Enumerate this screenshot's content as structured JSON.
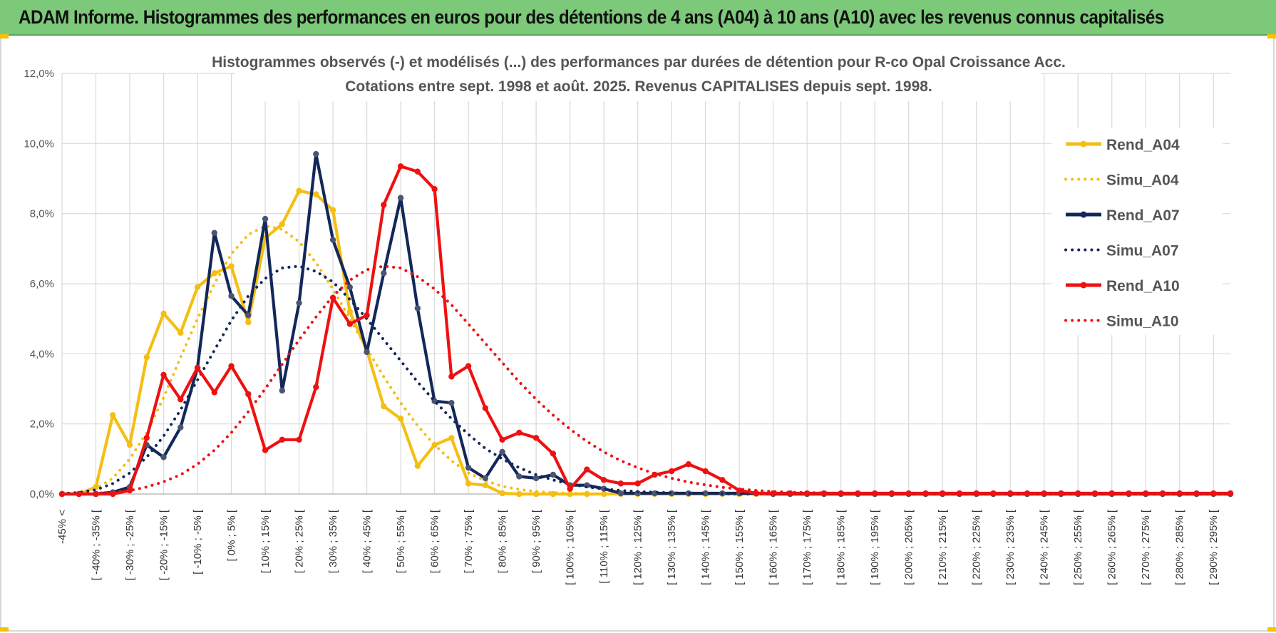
{
  "header": {
    "title": "ADAM Informe. Histogrammes des performances en euros pour des détentions de 4 ans (A04) à 10 ans (A10) avec les revenus connus capitalisés"
  },
  "chart_data": {
    "type": "line",
    "title": "Histogrammes observés (-) et modélisés (...) des performances par durées de détention pour R-co Opal Croissance Acc.",
    "subtitle": "Cotations entre sept. 1998 et août. 2025. Revenus CAPITALISES depuis sept. 1998.",
    "xlabel": "",
    "ylabel": "",
    "ylim": [
      0,
      12
    ],
    "ytick_labels": [
      "0,0%",
      "2,0%",
      "4,0%",
      "6,0%",
      "8,0%",
      "10,0%",
      "12,0%"
    ],
    "grid": true,
    "legend_position": "right",
    "categories": [
      "-45% <",
      "",
      "[ -40% ; -35% [",
      "",
      "[ -30% ; -25% [",
      "",
      "[ -20% ; -15% [",
      "",
      "[ -10% ; -5% [",
      "",
      "[ 0% ; 5% [",
      "",
      "[ 10% ; 15% [",
      "",
      "[ 20% ; 25% [",
      "",
      "[ 30% ; 35% [",
      "",
      "[ 40% ; 45% [",
      "",
      "[ 50% ; 55% [",
      "",
      "[ 60% ; 65% [",
      "",
      "[ 70% ; 75% [",
      "",
      "[ 80% ; 85% [",
      "",
      "[ 90% ; 95% [",
      "",
      "[ 100% ; 105% [",
      "",
      "[ 110% ; 115% [",
      "",
      "[ 120% ; 125% [",
      "",
      "[ 130% ; 135% [",
      "",
      "[ 140% ; 145% [",
      "",
      "[ 150% ; 155% [",
      "",
      "[ 160% ; 165% [",
      "",
      "[ 170% ; 175% [",
      "",
      "[ 180% ; 185% [",
      "",
      "[ 190% ; 195% [",
      "",
      "[ 200% ; 205% [",
      "",
      "[ 210% ; 215% [",
      "",
      "[ 220% ; 225% [",
      "",
      "[ 230% ; 235% [",
      "",
      "[ 240% ; 245% [",
      "",
      "[ 250% ; 255% [",
      "",
      "[ 260% ; 265% [",
      "",
      "[ 270% ; 275% [",
      "",
      "[ 280% ; 285% [",
      "",
      "[ 290% ; 295% [",
      ""
    ],
    "series": [
      {
        "name": "Rend_A04",
        "style": "solid",
        "color": "#f5be12",
        "values": [
          0,
          0,
          0.2,
          2.25,
          1.4,
          3.9,
          5.15,
          4.6,
          5.9,
          6.3,
          6.5,
          4.9,
          7.3,
          7.7,
          8.65,
          8.55,
          8.1,
          5.2,
          4.1,
          2.5,
          2.15,
          0.8,
          1.4,
          1.6,
          0.3,
          0.25,
          0.02,
          0,
          0,
          0,
          0,
          0,
          0,
          0,
          0,
          0,
          0,
          0,
          0,
          0,
          0,
          0,
          0,
          0,
          0,
          0,
          0,
          0,
          0,
          0,
          0,
          0,
          0,
          0,
          0,
          0,
          0,
          0,
          0,
          0,
          0,
          0,
          0,
          0,
          0,
          0,
          0,
          0,
          0,
          0
        ]
      },
      {
        "name": "Simu_A04",
        "style": "dotted",
        "color": "#f5be12",
        "values": [
          0.01,
          0.05,
          0.15,
          0.45,
          1.0,
          1.75,
          2.75,
          3.9,
          5.0,
          6.0,
          6.85,
          7.4,
          7.65,
          7.55,
          7.2,
          6.6,
          5.85,
          5.0,
          4.15,
          3.35,
          2.6,
          1.95,
          1.4,
          0.95,
          0.6,
          0.38,
          0.22,
          0.13,
          0.07,
          0.04,
          0.02,
          0.01,
          0,
          0,
          0,
          0,
          0,
          0,
          0,
          0,
          0,
          0,
          0,
          0,
          0,
          0,
          0,
          0,
          0,
          0,
          0,
          0,
          0,
          0,
          0,
          0,
          0,
          0,
          0,
          0,
          0,
          0,
          0,
          0,
          0,
          0,
          0,
          0,
          0,
          0
        ]
      },
      {
        "name": "Rend_A07",
        "style": "solid",
        "color": "#13285a",
        "values": [
          0,
          0,
          0,
          0.05,
          0.2,
          1.4,
          1.05,
          1.9,
          3.6,
          7.45,
          5.65,
          5.1,
          7.85,
          2.95,
          5.45,
          9.7,
          7.25,
          5.9,
          4.05,
          6.3,
          8.45,
          5.3,
          2.65,
          2.6,
          0.75,
          0.45,
          1.2,
          0.5,
          0.45,
          0.55,
          0.25,
          0.25,
          0.15,
          0.02,
          0.02,
          0.02,
          0.02,
          0.02,
          0.02,
          0.02,
          0.02,
          0.02,
          0,
          0,
          0,
          0,
          0,
          0,
          0,
          0,
          0,
          0,
          0,
          0,
          0,
          0,
          0,
          0,
          0,
          0,
          0,
          0,
          0,
          0,
          0,
          0,
          0,
          0,
          0,
          0
        ]
      },
      {
        "name": "Simu_A07",
        "style": "dotted",
        "color": "#13285a",
        "values": [
          0.01,
          0.04,
          0.12,
          0.3,
          0.6,
          1.05,
          1.65,
          2.4,
          3.25,
          4.1,
          4.95,
          5.65,
          6.15,
          6.45,
          6.5,
          6.35,
          6.05,
          5.55,
          5.0,
          4.4,
          3.8,
          3.2,
          2.65,
          2.15,
          1.7,
          1.3,
          1.0,
          0.75,
          0.55,
          0.4,
          0.28,
          0.2,
          0.14,
          0.1,
          0.07,
          0.05,
          0.03,
          0.02,
          0.01,
          0.01,
          0,
          0,
          0,
          0,
          0,
          0,
          0,
          0,
          0,
          0,
          0,
          0,
          0,
          0,
          0,
          0,
          0,
          0,
          0,
          0,
          0,
          0,
          0,
          0,
          0,
          0,
          0,
          0,
          0,
          0
        ]
      },
      {
        "name": "Rend_A10",
        "style": "solid",
        "color": "#ee1111",
        "values": [
          0,
          0,
          0,
          0,
          0.1,
          1.6,
          3.4,
          2.7,
          3.6,
          2.9,
          3.65,
          2.85,
          1.25,
          1.55,
          1.55,
          3.05,
          5.6,
          4.85,
          5.1,
          8.25,
          9.35,
          9.2,
          8.7,
          3.35,
          3.65,
          2.45,
          1.55,
          1.75,
          1.6,
          1.15,
          0.15,
          0.7,
          0.4,
          0.3,
          0.3,
          0.55,
          0.65,
          0.85,
          0.65,
          0.4,
          0.1,
          0.02,
          0.02,
          0.02,
          0.02,
          0.02,
          0.02,
          0.02,
          0.02,
          0.02,
          0.02,
          0.02,
          0.02,
          0.02,
          0.02,
          0.02,
          0.02,
          0.02,
          0.02,
          0.02,
          0.02,
          0.02,
          0.02,
          0.02,
          0.02,
          0.02,
          0.02,
          0.02,
          0.02,
          0.02
        ]
      },
      {
        "name": "Simu_A10",
        "style": "dotted",
        "color": "#ee1111",
        "values": [
          0,
          0.01,
          0.02,
          0.05,
          0.1,
          0.2,
          0.35,
          0.55,
          0.85,
          1.25,
          1.75,
          2.35,
          3.0,
          3.7,
          4.4,
          5.05,
          5.65,
          6.1,
          6.4,
          6.5,
          6.45,
          6.2,
          5.85,
          5.4,
          4.85,
          4.3,
          3.75,
          3.2,
          2.7,
          2.25,
          1.85,
          1.5,
          1.2,
          0.95,
          0.75,
          0.58,
          0.45,
          0.34,
          0.26,
          0.19,
          0.14,
          0.1,
          0.07,
          0.05,
          0.04,
          0.03,
          0.02,
          0.01,
          0.01,
          0.01,
          0,
          0,
          0,
          0,
          0,
          0,
          0,
          0,
          0,
          0,
          0,
          0,
          0,
          0,
          0,
          0,
          0,
          0,
          0,
          0
        ]
      }
    ]
  }
}
